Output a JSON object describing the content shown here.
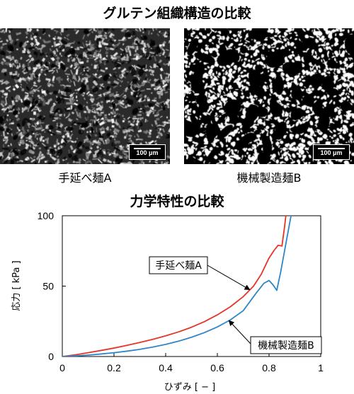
{
  "figure": {
    "top_title": "グルテン組織構造の比較",
    "bottom_title": "力学特性の比較"
  },
  "micrographs": [
    {
      "caption": "手延べ麺A",
      "scale_bar": "100 μm",
      "style": "grayscale SEM texture"
    },
    {
      "caption": "機械製造麺B",
      "scale_bar": "100 μm",
      "style": "binary black-white texture"
    }
  ],
  "chart_data": {
    "type": "line",
    "title": "力学特性の比較",
    "xlabel": "ひずみ [ − ]",
    "ylabel": "応力 [ kPa ]",
    "xlim": [
      0,
      1
    ],
    "ylim": [
      0,
      100
    ],
    "xticks": [
      "0",
      "0.2",
      "0.4",
      "0.6",
      "0.8",
      "1"
    ],
    "yticks": [
      "0",
      "50",
      "100"
    ],
    "grid": false,
    "legend": "callout boxes with arrows",
    "series": [
      {
        "name": "手延べ麺A",
        "color": "#e8332a",
        "x": [
          0,
          0.05,
          0.1,
          0.15,
          0.2,
          0.25,
          0.3,
          0.35,
          0.4,
          0.45,
          0.5,
          0.55,
          0.6,
          0.65,
          0.7,
          0.74,
          0.77,
          0.8,
          0.82,
          0.835,
          0.85,
          0.86,
          0.865
        ],
        "y": [
          0,
          1.2,
          2.7,
          4.3,
          6.0,
          7.9,
          10.0,
          12.2,
          14.7,
          17.5,
          20.8,
          24.8,
          29.6,
          35.3,
          42.5,
          50.0,
          58.5,
          70.0,
          75.5,
          79.0,
          78.5,
          92.0,
          100
        ]
      },
      {
        "name": "機械製造麺B",
        "color": "#2e86c8",
        "x": [
          0,
          0.05,
          0.1,
          0.15,
          0.2,
          0.25,
          0.3,
          0.35,
          0.4,
          0.45,
          0.5,
          0.55,
          0.6,
          0.65,
          0.7,
          0.75,
          0.78,
          0.8,
          0.815,
          0.83,
          0.845,
          0.86,
          0.875,
          0.885
        ],
        "y": [
          0,
          0.4,
          1.0,
          1.8,
          2.7,
          3.8,
          5.1,
          6.7,
          8.6,
          10.9,
          13.7,
          17.0,
          21.0,
          26.0,
          32.5,
          45.0,
          52.0,
          54.0,
          51.0,
          47.0,
          60.0,
          75.0,
          90.0,
          100
        ]
      }
    ],
    "annotations": [
      {
        "text": "手延べ麺A",
        "series": "手延べ麺A"
      },
      {
        "text": "機械製造麺B",
        "series": "機械製造麺B"
      }
    ]
  }
}
